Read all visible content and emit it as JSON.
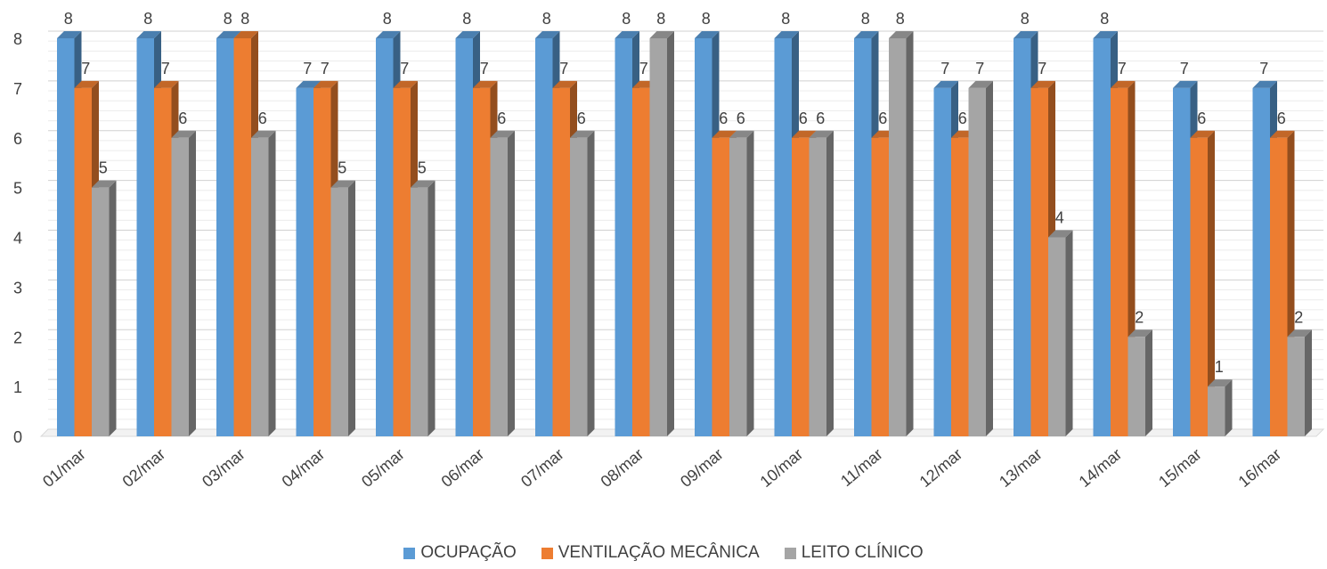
{
  "chart_data": {
    "type": "bar",
    "title": "",
    "xlabel": "",
    "ylabel": "",
    "ylim": [
      0,
      8
    ],
    "yticks": [
      0,
      1,
      2,
      3,
      4,
      5,
      6,
      7,
      8
    ],
    "grid": true,
    "style": "3d-clustered-column",
    "legend_position": "bottom",
    "categories": [
      "01/mar",
      "02/mar",
      "03/mar",
      "04/mar",
      "05/mar",
      "06/mar",
      "07/mar",
      "08/mar",
      "09/mar",
      "10/mar",
      "11/mar",
      "12/mar",
      "13/mar",
      "14/mar",
      "15/mar",
      "16/mar"
    ],
    "series": [
      {
        "name": "OCUPAÇÃO",
        "color": "#5B9BD5",
        "values": [
          8,
          8,
          8,
          7,
          8,
          8,
          8,
          8,
          8,
          8,
          8,
          7,
          8,
          8,
          7,
          7
        ]
      },
      {
        "name": "VENTILAÇÃO MECÂNICA",
        "color": "#ED7D31",
        "values": [
          7,
          7,
          8,
          7,
          7,
          7,
          7,
          7,
          6,
          6,
          6,
          6,
          7,
          7,
          6,
          6
        ]
      },
      {
        "name": "LEITO CLÍNICO",
        "color": "#A5A5A5",
        "values": [
          5,
          6,
          6,
          5,
          5,
          6,
          6,
          8,
          6,
          6,
          8,
          7,
          4,
          2,
          1,
          2
        ]
      }
    ]
  }
}
